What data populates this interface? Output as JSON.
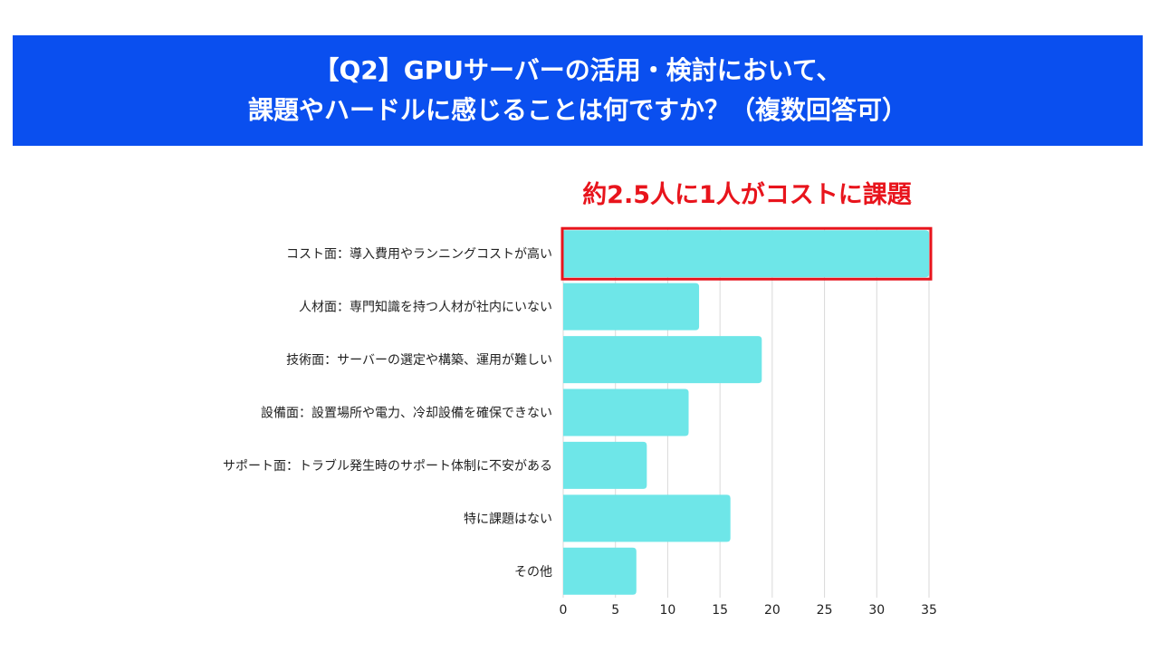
{
  "header": {
    "line1": "【Q2】GPUサーバーの活用・検討において、",
    "line2": "課題やハードルに感じることは何ですか？（複数回答可）"
  },
  "headline": "約2.5人に1人がコストに課題",
  "colors": {
    "header_bg": "#0a4fef",
    "bar": "#6ee6e8",
    "highlight": "#e8141c",
    "grid": "#d9d9d9"
  },
  "chart_data": {
    "type": "bar",
    "orientation": "horizontal",
    "categories": [
      "コスト面：導入費用やランニングコストが高い",
      "人材面：専門知識を持つ人材が社内にいない",
      "技術面：サーバーの選定や構築、運用が難しい",
      "設備面：設置場所や電力、冷却設備を確保できない",
      "サポート面：トラブル発生時のサポート体制に不安がある",
      "特に課題はない",
      "その他"
    ],
    "values": [
      35,
      13,
      19,
      12,
      8,
      16,
      7
    ],
    "xlim": [
      0,
      35
    ],
    "xticks": [
      0,
      5,
      10,
      15,
      20,
      25,
      30,
      35
    ],
    "grid": true,
    "highlighted_index": 0
  }
}
